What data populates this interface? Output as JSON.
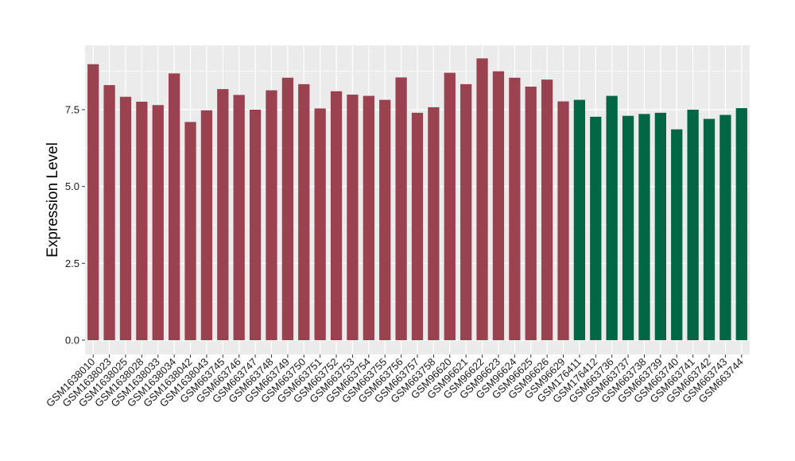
{
  "chart_data": {
    "type": "bar",
    "ylabel": "Expression Level",
    "xlabel": "",
    "ylim": [
      0,
      9.5
    ],
    "yticks": [
      "0.0",
      "2.5",
      "5.0",
      "7.5"
    ],
    "yticks_values": [
      0,
      2.5,
      5.0,
      7.5
    ],
    "grid": true,
    "legend": "none",
    "colors": {
      "group_1": "#9B4251",
      "group_2": "#006644",
      "panel": "#EBEBEB",
      "grid": "#FFFFFF"
    },
    "categories": [
      "GSM1638010",
      "GSM1638023",
      "GSM1638025",
      "GSM1638028",
      "GSM1638033",
      "GSM1638034",
      "GSM1638042",
      "GSM1638043",
      "GSM663745",
      "GSM663746",
      "GSM663747",
      "GSM663748",
      "GSM663749",
      "GSM663750",
      "GSM663751",
      "GSM663752",
      "GSM663753",
      "GSM663754",
      "GSM663755",
      "GSM663756",
      "GSM663757",
      "GSM663758",
      "GSM96620",
      "GSM96621",
      "GSM96622",
      "GSM96623",
      "GSM96624",
      "GSM96625",
      "GSM96626",
      "GSM96629",
      "GSM176411",
      "GSM176412",
      "GSM663736",
      "GSM663737",
      "GSM663738",
      "GSM663739",
      "GSM663740",
      "GSM663741",
      "GSM663742",
      "GSM663743",
      "GSM663744"
    ],
    "values": [
      8.98,
      8.3,
      7.92,
      7.76,
      7.65,
      8.68,
      7.1,
      7.48,
      8.17,
      7.98,
      7.5,
      8.13,
      8.54,
      8.33,
      7.54,
      8.1,
      7.99,
      7.95,
      7.82,
      8.55,
      7.4,
      7.58,
      8.7,
      8.33,
      9.17,
      8.75,
      8.54,
      8.25,
      8.48,
      7.77,
      7.82,
      7.27,
      7.95,
      7.3,
      7.36,
      7.4,
      6.86,
      7.5,
      7.2,
      7.33,
      7.55
    ],
    "groups": [
      1,
      1,
      1,
      1,
      1,
      1,
      1,
      1,
      1,
      1,
      1,
      1,
      1,
      1,
      1,
      1,
      1,
      1,
      1,
      1,
      1,
      1,
      1,
      1,
      1,
      1,
      1,
      1,
      1,
      1,
      2,
      2,
      2,
      2,
      2,
      2,
      2,
      2,
      2,
      2,
      2
    ]
  }
}
